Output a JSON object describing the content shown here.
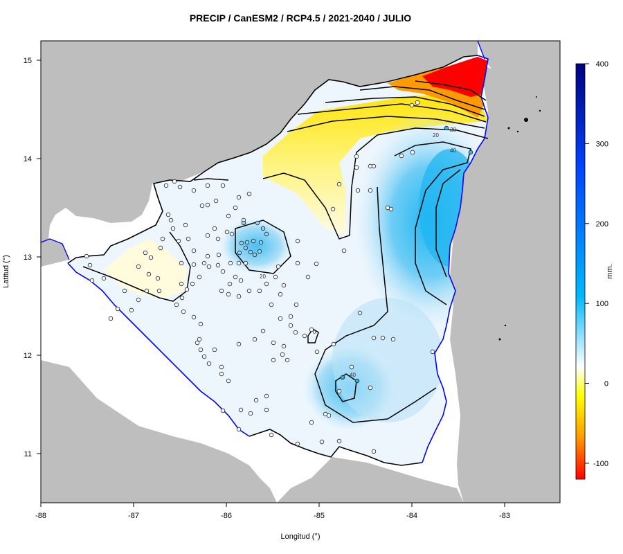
{
  "title": "PRECIP / CanESM2 / RCP4.5 / 2021-2040 / JULIO",
  "xlabel": "Longitud (°)",
  "ylabel": "Latitud (°)",
  "x_ticks": [
    "-88",
    "-87",
    "-86",
    "-85",
    "-84",
    "-83"
  ],
  "y_ticks": [
    "15",
    "14",
    "13",
    "12",
    "11"
  ],
  "colorbar": {
    "label": "mm.",
    "ticks": [
      "400",
      "300",
      "200",
      "100",
      "0",
      "-100"
    ],
    "range": [
      -120,
      400
    ],
    "colors": [
      "#ff0000",
      "#ff9900",
      "#ffff00",
      "#ffffff",
      "#00b4ff",
      "#0040ff",
      "#000080"
    ]
  },
  "contour_labels": [
    "20",
    "20",
    "40",
    "20",
    "40",
    "0"
  ],
  "colors": {
    "land_outside": "#bebebe",
    "coastline": "#0000ff",
    "border": "#000000",
    "stations": "#ffffff"
  }
}
